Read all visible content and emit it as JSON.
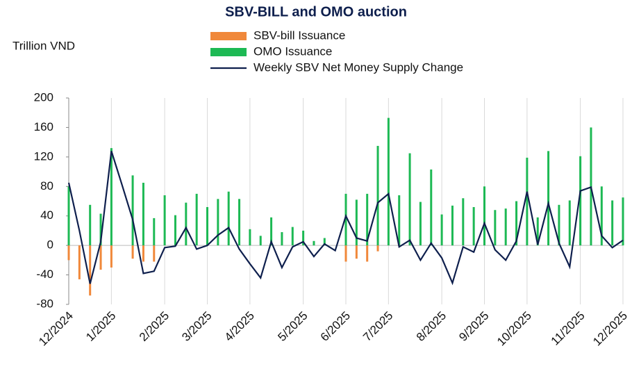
{
  "chart_data": {
    "type": "bar-line",
    "title": "SBV-BILL and OMO auction",
    "y_label": "Trillion VND",
    "categories": [
      "12/2024",
      null,
      null,
      null,
      "1/2025",
      null,
      null,
      null,
      null,
      "2/2025",
      null,
      null,
      null,
      "3/2025",
      null,
      null,
      null,
      "4/2025",
      null,
      null,
      null,
      null,
      "5/2025",
      null,
      null,
      null,
      "6/2025",
      null,
      null,
      null,
      "7/2025",
      null,
      null,
      null,
      null,
      "8/2025",
      null,
      null,
      null,
      "9/2025",
      null,
      null,
      null,
      "10/2025",
      null,
      null,
      null,
      null,
      "11/2025",
      null,
      null,
      null,
      "12/2025"
    ],
    "series": [
      {
        "name": "SBV-bill Issuance",
        "type": "bar",
        "color": "#f0883a",
        "values": [
          -20,
          -46,
          -68,
          -33,
          -30,
          null,
          -18,
          -22,
          -22,
          null,
          null,
          null,
          null,
          null,
          null,
          null,
          null,
          null,
          null,
          null,
          null,
          null,
          null,
          null,
          null,
          null,
          -22,
          -18,
          -22,
          -8,
          null,
          null,
          null,
          null,
          null,
          null,
          null,
          null,
          null,
          null,
          null,
          null,
          null,
          null,
          null,
          null,
          null,
          null,
          null,
          null,
          null,
          null,
          null
        ]
      },
      {
        "name": "OMO Issuance",
        "type": "bar",
        "color": "#1db954",
        "values": [
          80,
          null,
          55,
          43,
          132,
          null,
          95,
          85,
          37,
          68,
          41,
          58,
          70,
          52,
          63,
          73,
          63,
          22,
          13,
          38,
          18,
          25,
          20,
          6,
          10,
          null,
          70,
          62,
          70,
          135,
          173,
          68,
          125,
          59,
          103,
          42,
          54,
          64,
          52,
          80,
          48,
          50,
          60,
          119,
          38,
          128,
          55,
          61,
          121,
          160,
          80,
          61,
          65
        ]
      },
      {
        "name": "Weekly SBV Net Money Supply Change",
        "type": "line",
        "color": "#0e1f4d",
        "values": [
          85,
          20,
          -52,
          5,
          128,
          82,
          35,
          -38,
          -35,
          -3,
          -1,
          24,
          -5,
          0,
          14,
          24,
          -5,
          -25,
          -44,
          5,
          -30,
          -2,
          5,
          -15,
          2,
          -7,
          40,
          10,
          6,
          58,
          70,
          -2,
          7,
          -20,
          3,
          -17,
          -51,
          -2,
          -9,
          30,
          -6,
          -20,
          6,
          73,
          1,
          57,
          3,
          -29,
          74,
          79,
          13,
          -3,
          7
        ]
      }
    ],
    "ylim": [
      -80,
      200
    ],
    "yticks": [
      -80,
      -40,
      0,
      40,
      80,
      120,
      160,
      200
    ],
    "grid": "x"
  }
}
